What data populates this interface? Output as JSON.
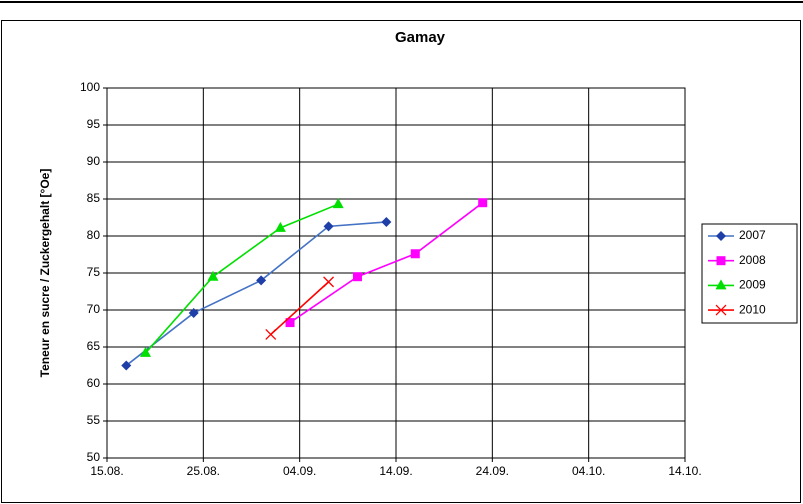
{
  "chart_data": {
    "type": "line",
    "title": "Gamay",
    "y_label": "Teneur en sucre / Zuckergehalt [°Oe]",
    "xlim": [
      "15.08.",
      "14.10."
    ],
    "xticks": [
      "15.08.",
      "25.08.",
      "04.09.",
      "14.09.",
      "24.09.",
      "04.10.",
      "14.10."
    ],
    "ylim": [
      50,
      100
    ],
    "yticks": [
      50,
      55,
      60,
      65,
      70,
      75,
      80,
      85,
      90,
      95,
      100
    ],
    "grid": true,
    "legend": "right",
    "series": [
      {
        "name": "2007",
        "color": "#1f3fa8",
        "marker": "diamond",
        "line_color": "#4472c4",
        "x": [
          "17.08.",
          "24.08.",
          "31.08.",
          "07.09.",
          "13.09."
        ],
        "values": [
          62.5,
          69.6,
          74,
          81.3,
          81.9
        ]
      },
      {
        "name": "2008",
        "color": "#ff00ff",
        "marker": "square",
        "line_color": "#ff00ff",
        "x": [
          "03.09.",
          "10.09.",
          "16.09.",
          "23.09."
        ],
        "values": [
          68.3,
          74.5,
          77.6,
          84.5
        ]
      },
      {
        "name": "2009",
        "color": "#00e000",
        "marker": "triangle",
        "line_color": "#00e000",
        "x": [
          "19.08.",
          "26.08.",
          "02.09.",
          "08.09."
        ],
        "values": [
          64.2,
          74.5,
          81.1,
          84.3
        ]
      },
      {
        "name": "2010",
        "color": "#ff0000",
        "marker": "x",
        "line_color": "#ff0000",
        "x": [
          "01.09.",
          "07.09."
        ],
        "values": [
          66.7,
          73.8
        ]
      }
    ]
  }
}
